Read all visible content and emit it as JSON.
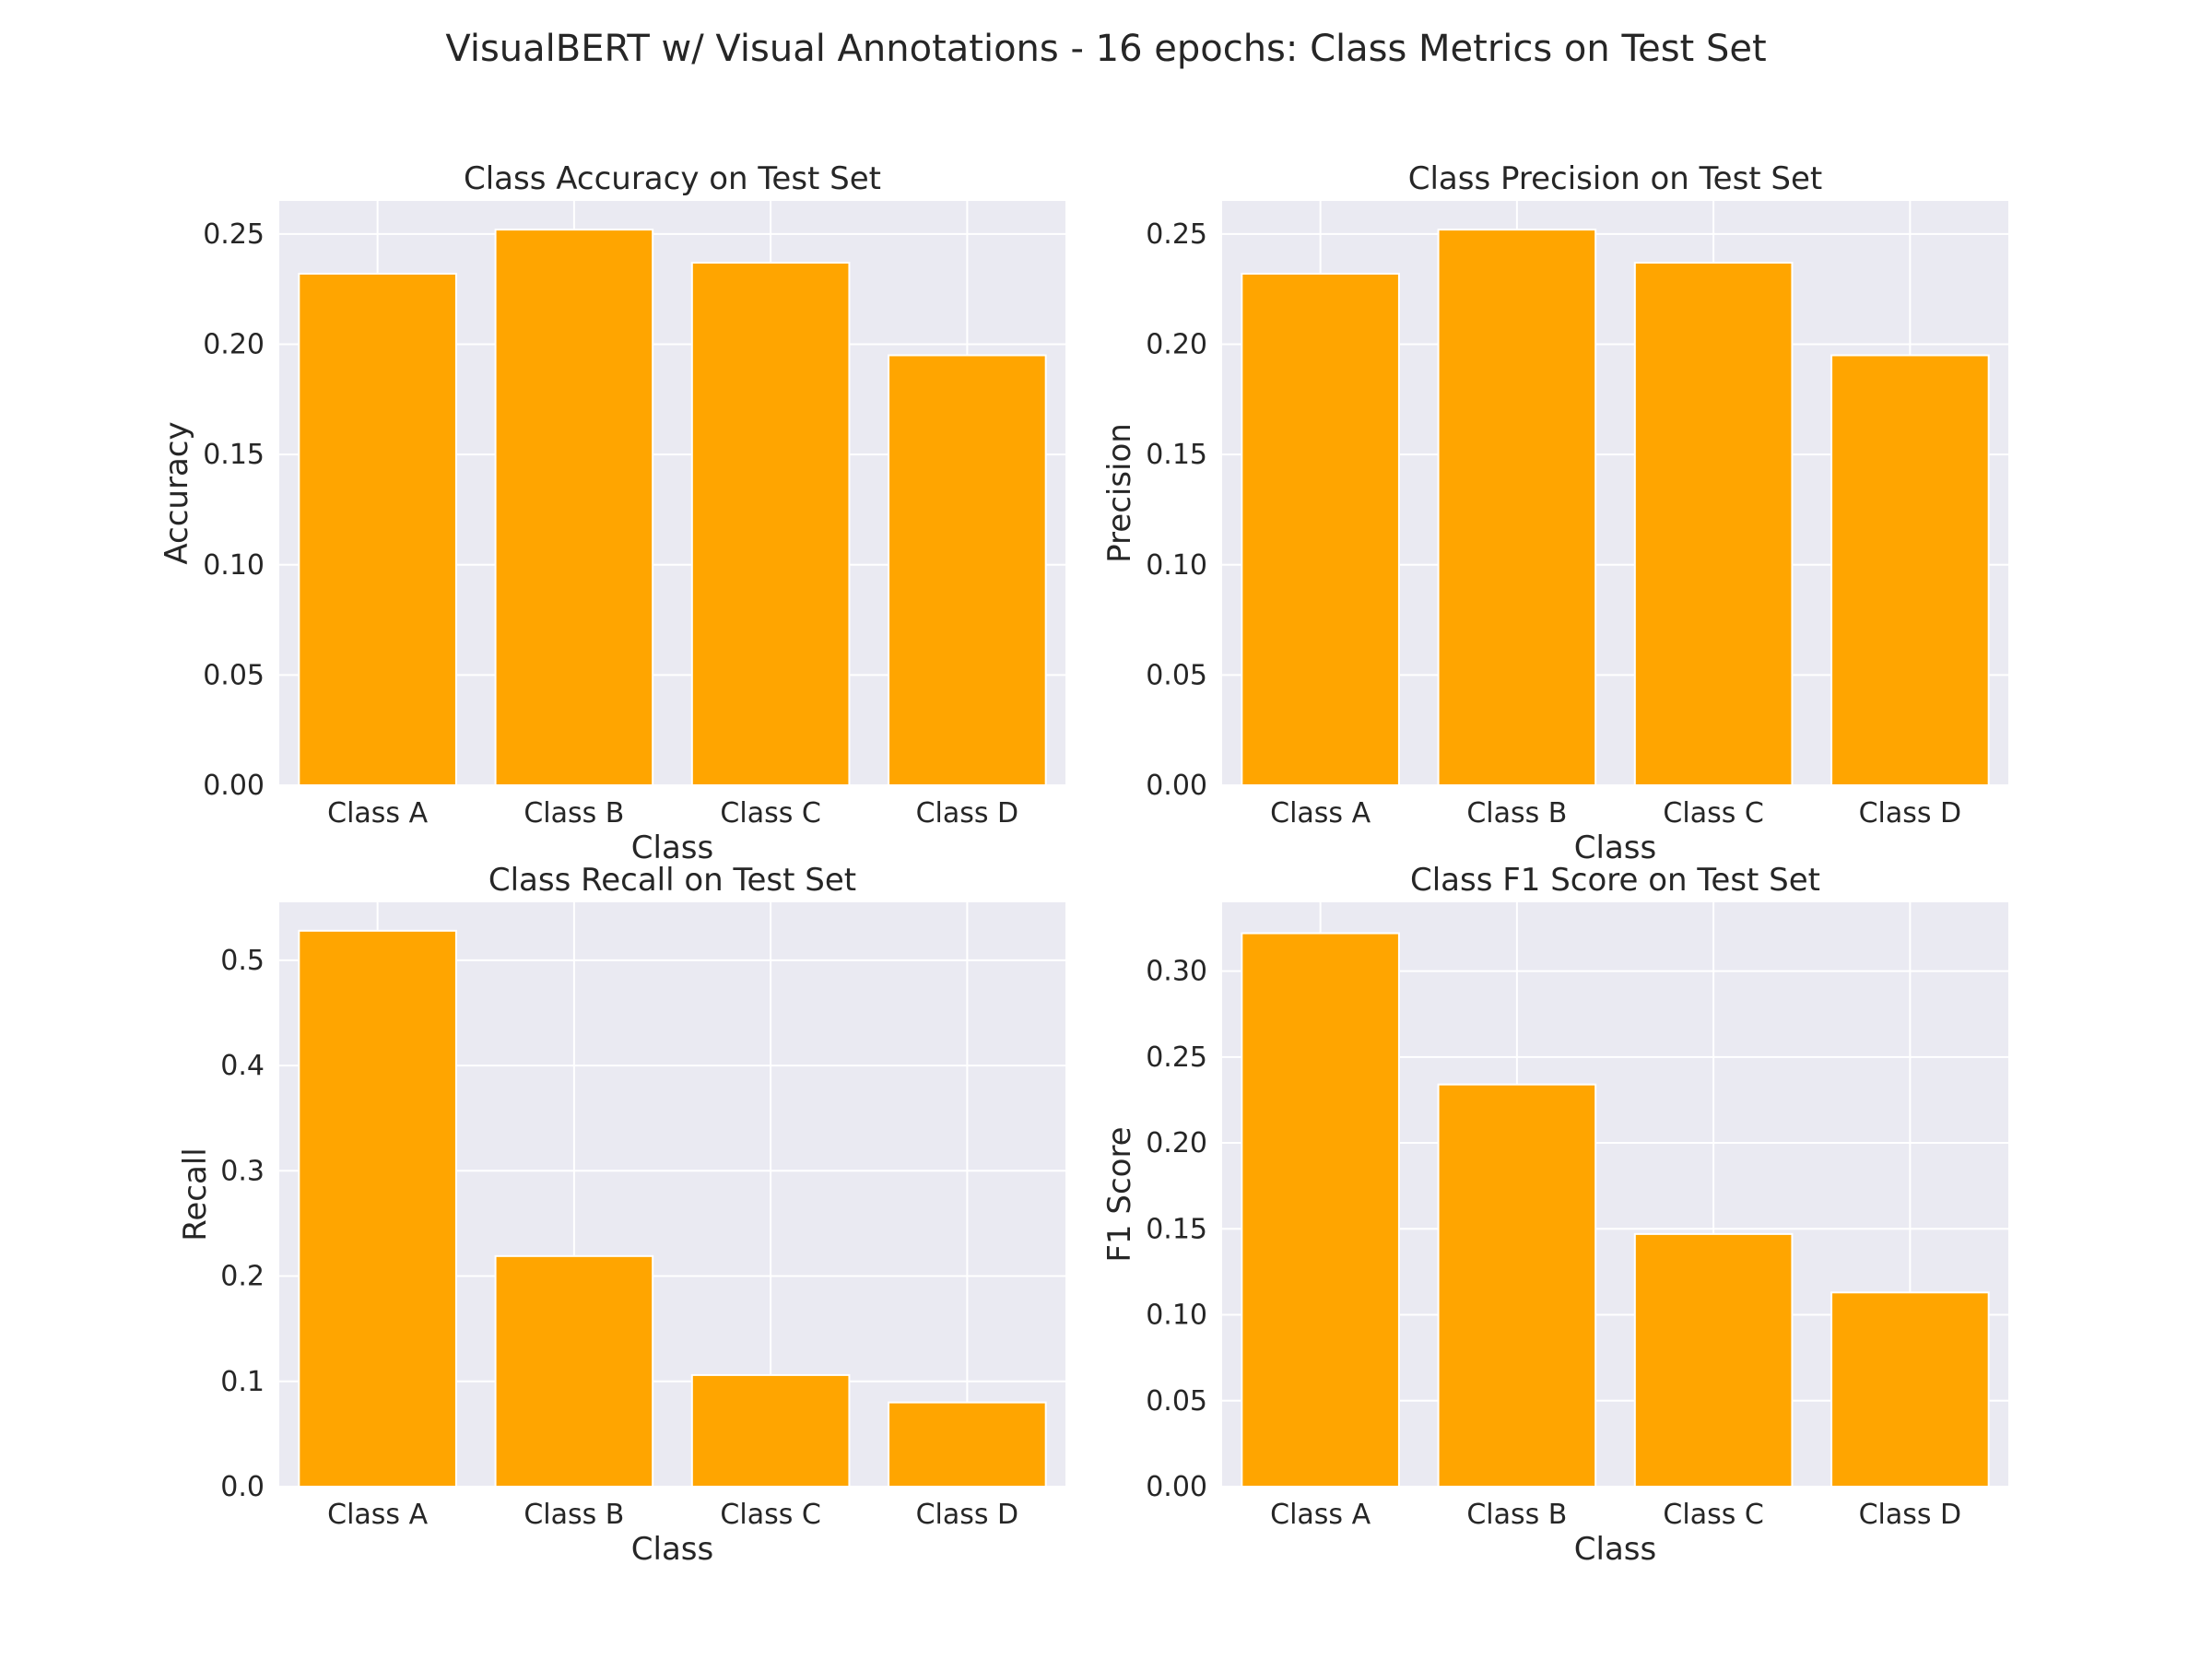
{
  "figure": {
    "title": "VisualBERT w/ Visual Annotations - 16 epochs: Class Metrics on Test Set"
  },
  "colors": {
    "bar": "#ffa500",
    "plot_background": "#eaeaf2",
    "grid": "#ffffff",
    "text": "#262626"
  },
  "chart_data": [
    {
      "type": "bar",
      "title": "Class Accuracy on Test Set",
      "categories": [
        "Class A",
        "Class B",
        "Class C",
        "Class D"
      ],
      "values": [
        0.232,
        0.252,
        0.237,
        0.195
      ],
      "xlabel": "Class",
      "ylabel": "Accuracy",
      "ylim": [
        0,
        0.265
      ],
      "yticks": [
        "0.00",
        "0.05",
        "0.10",
        "0.15",
        "0.20",
        "0.25"
      ],
      "grid": true
    },
    {
      "type": "bar",
      "title": "Class Precision on Test Set",
      "categories": [
        "Class A",
        "Class B",
        "Class C",
        "Class D"
      ],
      "values": [
        0.232,
        0.252,
        0.237,
        0.195
      ],
      "xlabel": "Class",
      "ylabel": "Precision",
      "ylim": [
        0,
        0.265
      ],
      "yticks": [
        "0.00",
        "0.05",
        "0.10",
        "0.15",
        "0.20",
        "0.25"
      ],
      "grid": true
    },
    {
      "type": "bar",
      "title": "Class Recall on Test Set",
      "categories": [
        "Class A",
        "Class B",
        "Class C",
        "Class D"
      ],
      "values": [
        0.528,
        0.219,
        0.106,
        0.08
      ],
      "xlabel": "Class",
      "ylabel": "Recall",
      "ylim": [
        0,
        0.555
      ],
      "yticks": [
        "0.0",
        "0.1",
        "0.2",
        "0.3",
        "0.4",
        "0.5"
      ],
      "grid": true
    },
    {
      "type": "bar",
      "title": "Class F1 Score on Test Set",
      "categories": [
        "Class A",
        "Class B",
        "Class C",
        "Class D"
      ],
      "values": [
        0.322,
        0.234,
        0.147,
        0.113
      ],
      "xlabel": "Class",
      "ylabel": "F1 Score",
      "ylim": [
        0,
        0.34
      ],
      "yticks": [
        "0.00",
        "0.05",
        "0.10",
        "0.15",
        "0.20",
        "0.25",
        "0.30"
      ],
      "grid": true
    }
  ]
}
